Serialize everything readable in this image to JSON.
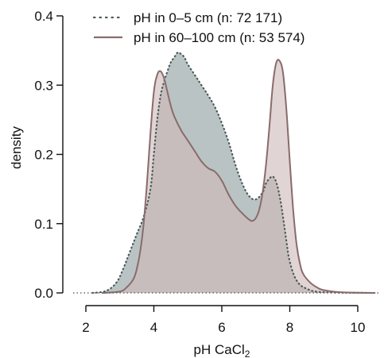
{
  "chart_data": {
    "type": "area",
    "xlabel": "pH CaCl",
    "xlabel_subscript": "2",
    "ylabel": "density",
    "xlim": [
      2,
      10.8
    ],
    "ylim": [
      0,
      0.4
    ],
    "x_ticks": [
      "2",
      "4",
      "6",
      "8",
      "10"
    ],
    "y_ticks": [
      "0.0",
      "0.1",
      "0.2",
      "0.3",
      "0.4"
    ],
    "legend_position": "top",
    "grid": false,
    "series": [
      {
        "name": "pH in 0–5 cm  (n: 72 171)",
        "line_style": "dotted",
        "line_color": "#4d5a5a",
        "fill_color": "#8f9e9e",
        "x": [
          2.2,
          2.6,
          2.9,
          3.1,
          3.3,
          3.5,
          3.7,
          3.9,
          4.0,
          4.1,
          4.2,
          4.3,
          4.4,
          4.5,
          4.6,
          4.7,
          4.8,
          4.9,
          5.0,
          5.2,
          5.4,
          5.6,
          5.8,
          6.0,
          6.2,
          6.4,
          6.6,
          6.8,
          7.0,
          7.2,
          7.3,
          7.4,
          7.5,
          7.6,
          7.7,
          7.8,
          7.9,
          8.0,
          8.2,
          8.5,
          9.0,
          10.5
        ],
        "values": [
          0.0,
          0.003,
          0.015,
          0.035,
          0.06,
          0.085,
          0.11,
          0.15,
          0.2,
          0.25,
          0.285,
          0.305,
          0.32,
          0.333,
          0.34,
          0.347,
          0.345,
          0.34,
          0.33,
          0.315,
          0.3,
          0.285,
          0.268,
          0.245,
          0.218,
          0.185,
          0.158,
          0.14,
          0.135,
          0.145,
          0.158,
          0.165,
          0.168,
          0.16,
          0.14,
          0.11,
          0.075,
          0.045,
          0.018,
          0.006,
          0.001,
          0.0
        ]
      },
      {
        "name": "pH in 60–100 cm  (n: 53 574)",
        "line_style": "solid",
        "line_color": "#8a6b6b",
        "fill_color": "#cfb9b9",
        "x": [
          2.5,
          3.0,
          3.2,
          3.4,
          3.5,
          3.6,
          3.7,
          3.8,
          3.9,
          4.0,
          4.1,
          4.2,
          4.3,
          4.4,
          4.5,
          4.6,
          4.8,
          5.0,
          5.2,
          5.4,
          5.6,
          5.8,
          6.0,
          6.2,
          6.4,
          6.6,
          6.8,
          6.9,
          7.0,
          7.1,
          7.2,
          7.3,
          7.4,
          7.5,
          7.6,
          7.7,
          7.8,
          7.9,
          8.0,
          8.1,
          8.2,
          8.3,
          8.4,
          8.6,
          8.8,
          9.0,
          9.5,
          10.5
        ],
        "values": [
          0.0,
          0.002,
          0.008,
          0.02,
          0.035,
          0.06,
          0.1,
          0.16,
          0.23,
          0.29,
          0.315,
          0.32,
          0.31,
          0.29,
          0.27,
          0.255,
          0.235,
          0.22,
          0.205,
          0.19,
          0.18,
          0.175,
          0.162,
          0.142,
          0.126,
          0.115,
          0.106,
          0.104,
          0.108,
          0.12,
          0.145,
          0.185,
          0.24,
          0.3,
          0.332,
          0.335,
          0.318,
          0.265,
          0.19,
          0.12,
          0.07,
          0.042,
          0.027,
          0.015,
          0.008,
          0.004,
          0.001,
          0.0
        ]
      }
    ]
  }
}
